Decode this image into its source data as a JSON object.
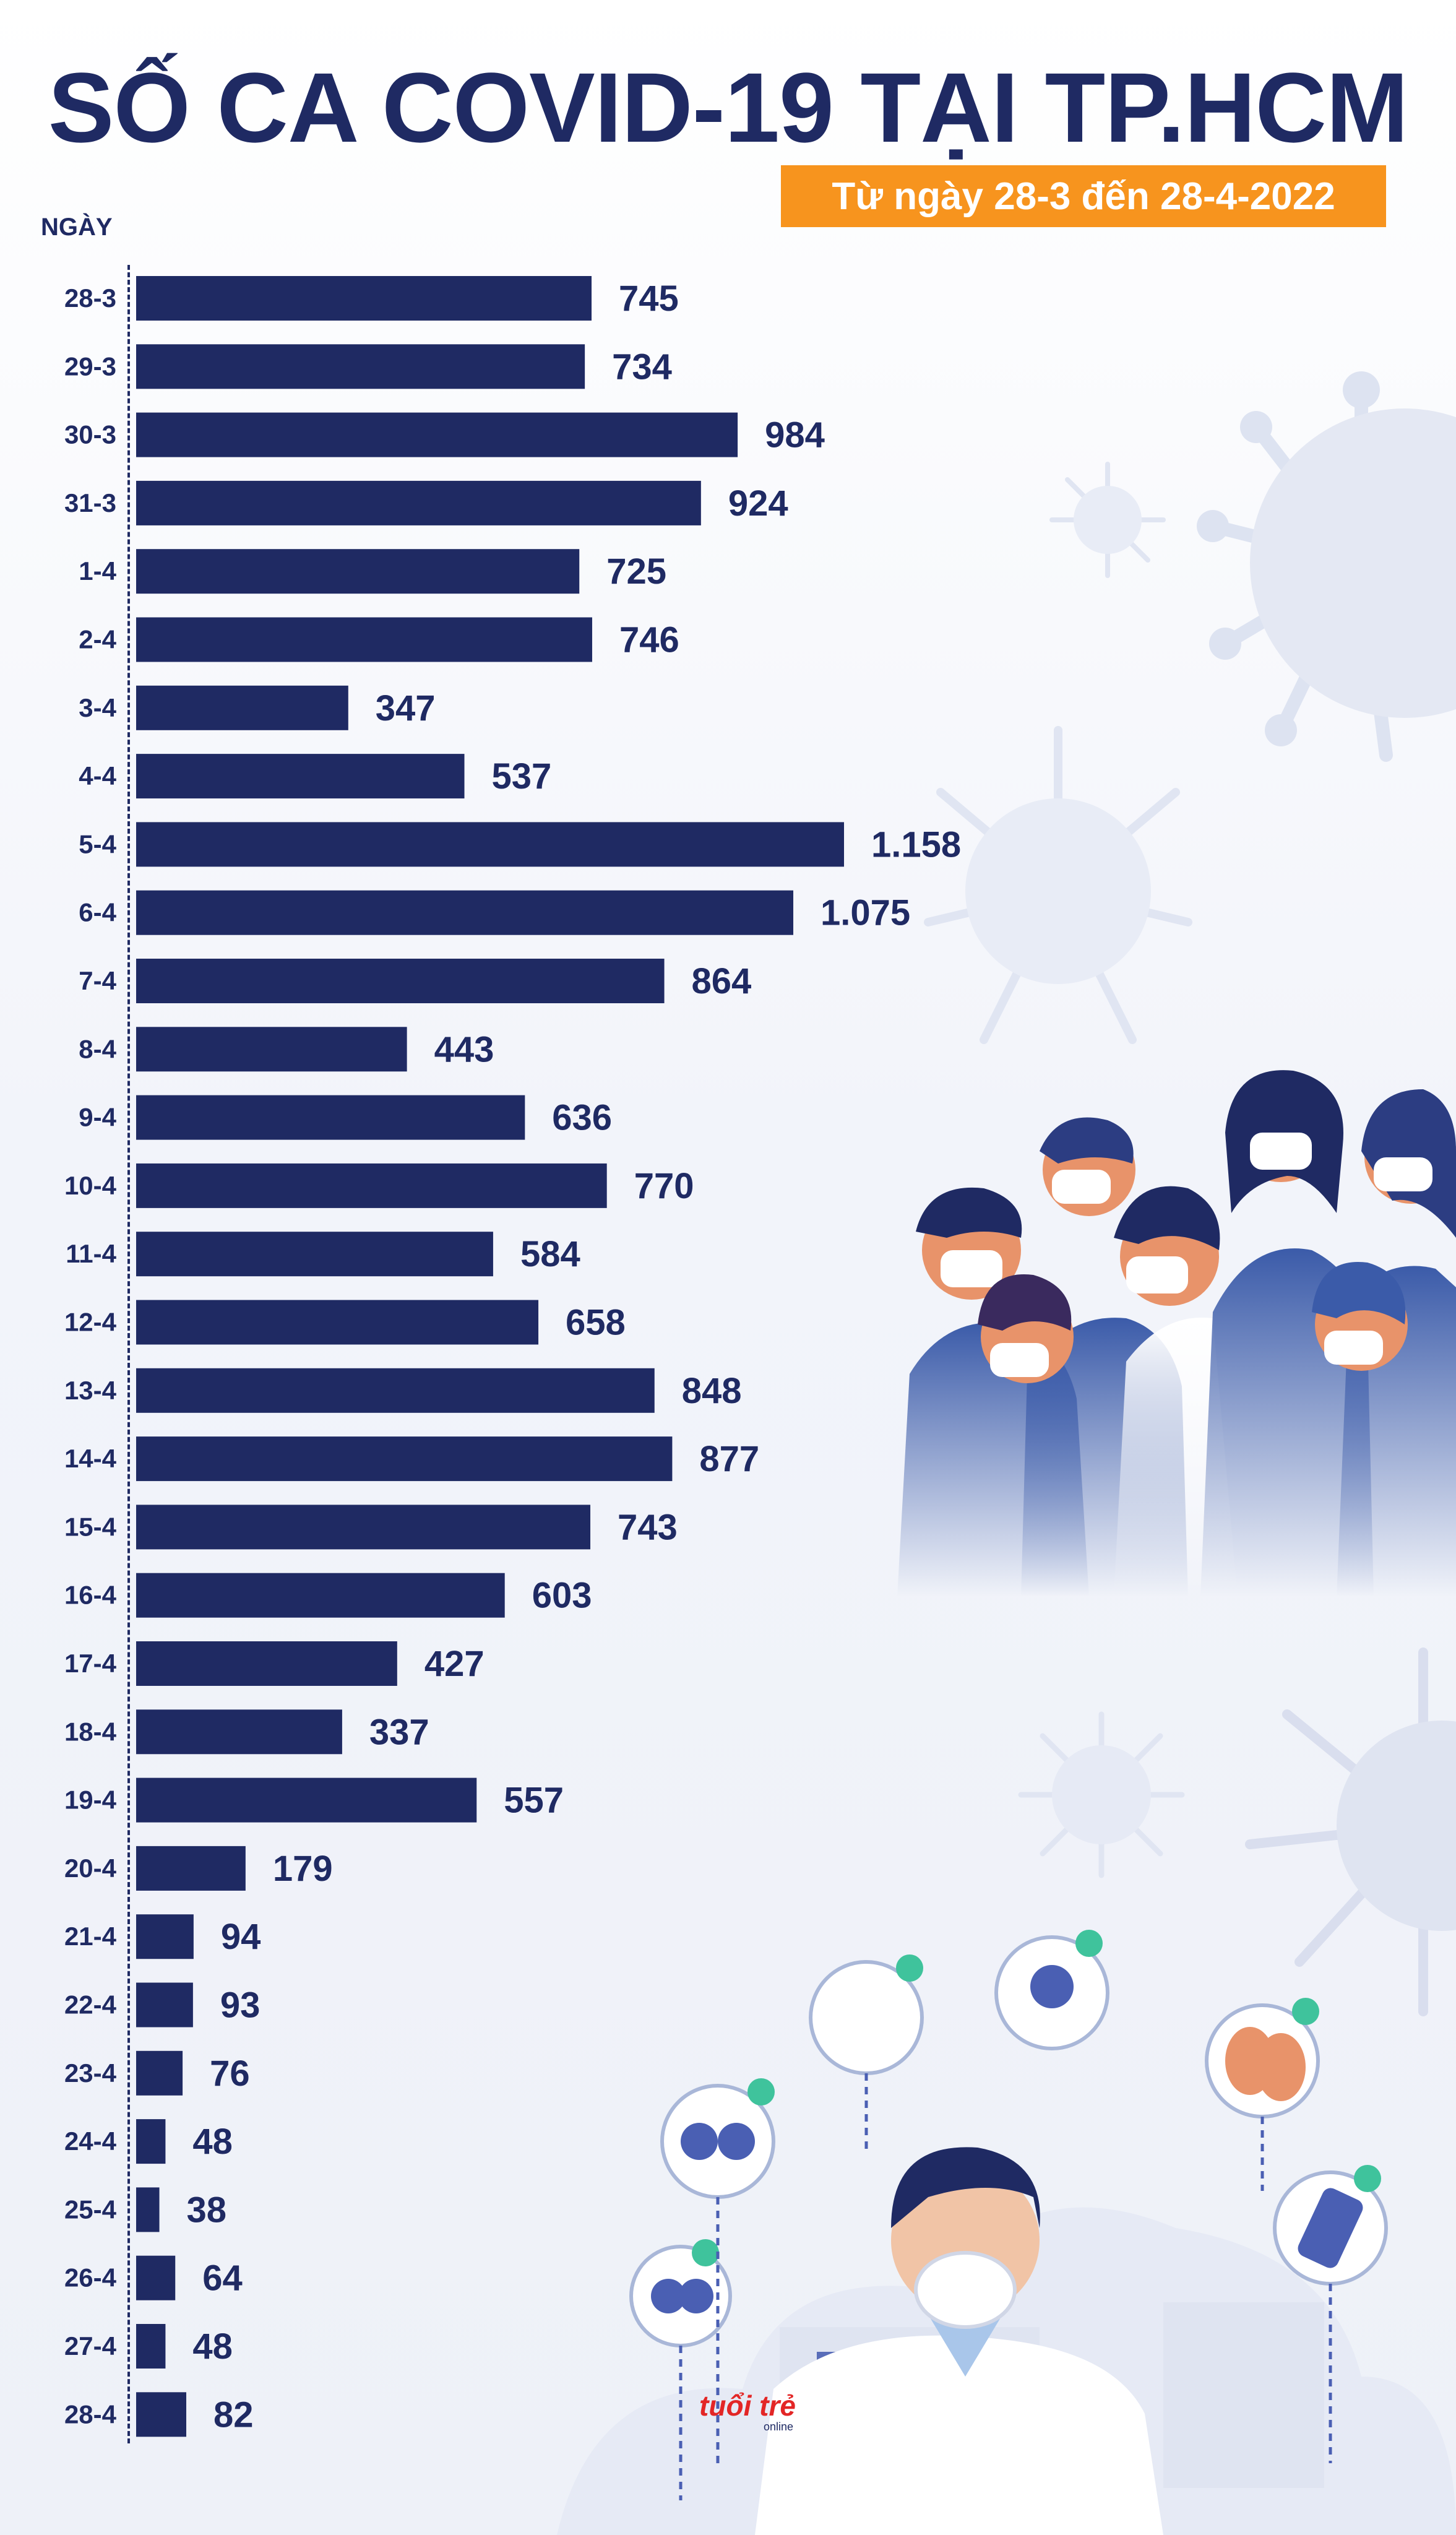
{
  "header": {
    "title": "SỐ CA COVID-19 TẠI TP.HCM",
    "subtitle": "Từ ngày 28-3 đến 28-4-2022"
  },
  "brand": {
    "logo_text": "tuổi trẻ",
    "logo_sub": "online"
  },
  "colors": {
    "bar": "#1f2a63",
    "accent": "#f7941e",
    "text": "#1f2a63"
  },
  "chart_data": {
    "type": "bar",
    "orientation": "horizontal",
    "ylabel": "NGÀY",
    "categories": [
      "28-3",
      "29-3",
      "30-3",
      "31-3",
      "1-4",
      "2-4",
      "3-4",
      "4-4",
      "5-4",
      "6-4",
      "7-4",
      "8-4",
      "9-4",
      "10-4",
      "11-4",
      "12-4",
      "13-4",
      "14-4",
      "15-4",
      "16-4",
      "17-4",
      "18-4",
      "19-4",
      "20-4",
      "21-4",
      "22-4",
      "23-4",
      "24-4",
      "25-4",
      "26-4",
      "27-4",
      "28-4"
    ],
    "values": [
      745,
      734,
      984,
      924,
      725,
      746,
      347,
      537,
      1158,
      1075,
      864,
      443,
      636,
      770,
      584,
      658,
      848,
      877,
      743,
      603,
      427,
      337,
      557,
      179,
      94,
      93,
      76,
      48,
      38,
      64,
      48,
      82
    ],
    "value_labels": [
      "745",
      "734",
      "984",
      "924",
      "725",
      "746",
      "347",
      "537",
      "1.158",
      "1.075",
      "864",
      "443",
      "636",
      "770",
      "584",
      "658",
      "848",
      "877",
      "743",
      "603",
      "427",
      "337",
      "557",
      "179",
      "94",
      "93",
      "76",
      "48",
      "38",
      "64",
      "48",
      "82"
    ],
    "xlim": [
      0,
      1158
    ],
    "grid": false,
    "legend": "none"
  }
}
